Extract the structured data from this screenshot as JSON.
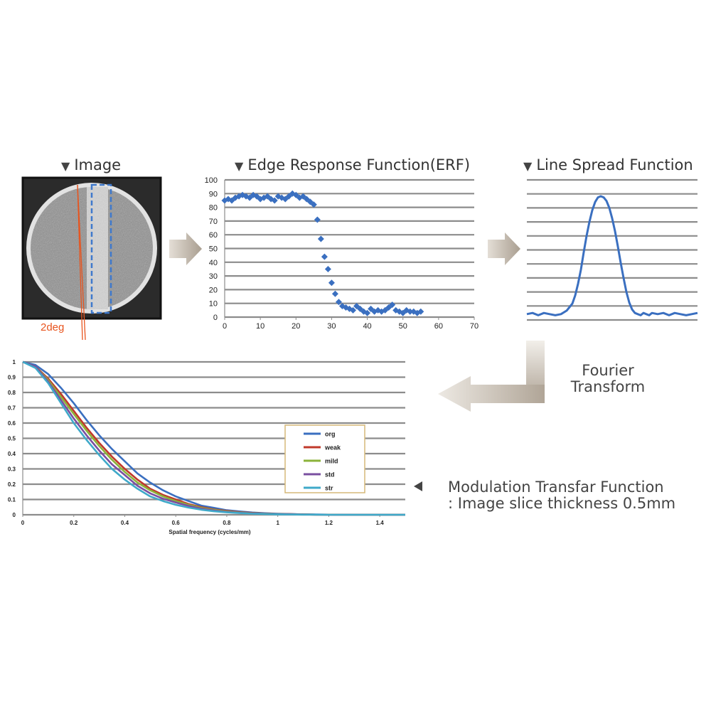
{
  "panels": {
    "image": {
      "title": "Image",
      "angle_label": "2deg"
    },
    "erf": {
      "title": "Edge Response Function(ERF)"
    },
    "lsf": {
      "title": "Line Spread Function"
    }
  },
  "fourier_caption": [
    "Fourier",
    "Transform"
  ],
  "mtf_caption": [
    "Modulation Transfar Function",
    ": Image slice thickness 0.5mm"
  ],
  "colors": {
    "series_blue": "#3a6fc0",
    "arrow": "#b7ada0",
    "grid": "#8c8c8c",
    "angle_lines": "#e8541e",
    "roi": "#3f79cc"
  },
  "chart_data": [
    {
      "id": "erf",
      "type": "scatter",
      "title": "Edge Response Function(ERF)",
      "xlim": [
        0,
        70
      ],
      "ylim": [
        0,
        100
      ],
      "xticks": [
        0,
        10,
        20,
        30,
        40,
        50,
        60,
        70
      ],
      "yticks": [
        0,
        10,
        20,
        30,
        40,
        50,
        60,
        70,
        80,
        90,
        100
      ],
      "grid": true,
      "x": [
        0,
        1,
        2,
        3,
        4,
        5,
        6,
        7,
        8,
        9,
        10,
        11,
        12,
        13,
        14,
        15,
        16,
        17,
        18,
        19,
        20,
        21,
        22,
        23,
        24,
        25,
        26,
        27,
        28,
        29,
        30,
        31,
        32,
        33,
        34,
        35,
        36,
        37,
        38,
        39,
        40,
        41,
        42,
        43,
        44,
        45,
        46,
        47,
        48,
        49,
        50,
        51,
        52,
        53,
        54,
        55
      ],
      "y": [
        85,
        86,
        85,
        87,
        88,
        89,
        88,
        87,
        89,
        88,
        86,
        87,
        88,
        86,
        85,
        88,
        87,
        86,
        88,
        90,
        89,
        87,
        88,
        86,
        84,
        82,
        71,
        57,
        44,
        35,
        25,
        17,
        11,
        8,
        7,
        6,
        5,
        8,
        6,
        4,
        3,
        6,
        4,
        5,
        4,
        5,
        7,
        9,
        5,
        4,
        3,
        5,
        4,
        4,
        3,
        4
      ]
    },
    {
      "id": "lsf",
      "type": "line",
      "title": "Line Spread Function",
      "xlim": [
        0,
        60
      ],
      "ylim": [
        0,
        12
      ],
      "grid": true,
      "x": [
        0,
        2,
        4,
        6,
        8,
        10,
        12,
        14,
        16,
        17,
        18,
        19,
        20,
        21,
        22,
        23,
        24,
        25,
        26,
        27,
        28,
        29,
        30,
        31,
        32,
        33,
        34,
        35,
        36,
        37,
        38,
        39,
        40,
        41,
        42,
        43,
        44,
        46,
        48,
        50,
        52,
        54,
        56,
        58,
        60
      ],
      "y": [
        0.5,
        0.6,
        0.4,
        0.6,
        0.5,
        0.4,
        0.5,
        0.8,
        1.4,
        2.1,
        3.1,
        4.3,
        5.8,
        7.2,
        8.4,
        9.4,
        10.1,
        10.5,
        10.6,
        10.5,
        10.2,
        9.6,
        8.7,
        7.6,
        6.3,
        4.9,
        3.6,
        2.4,
        1.5,
        0.9,
        0.6,
        0.5,
        0.4,
        0.6,
        0.5,
        0.4,
        0.6,
        0.5,
        0.6,
        0.4,
        0.6,
        0.5,
        0.4,
        0.5,
        0.6
      ]
    },
    {
      "id": "mtf",
      "type": "line",
      "xlabel": "Spatial frequency (cycles/mm)",
      "xlim": [
        0,
        1.5
      ],
      "ylim": [
        0,
        1
      ],
      "xticks": [
        0,
        0.2,
        0.4,
        0.6,
        0.8,
        1,
        1.2,
        1.4
      ],
      "xtick_labels": [
        "0",
        "0.2",
        "0.4",
        "0.6",
        "0.8",
        "1",
        "1.2",
        "1.4"
      ],
      "yticks": [
        0,
        0.1,
        0.2,
        0.3,
        0.4,
        0.5,
        0.6,
        0.7,
        0.8,
        0.9,
        1
      ],
      "ytick_labels": [
        "0",
        "0.1",
        "0.2",
        "0.3",
        "0.4",
        "0.5",
        "0.6",
        "0.7",
        "0.8",
        "0.9",
        "1"
      ],
      "grid": true,
      "legend_position": "right",
      "x": [
        0,
        0.05,
        0.1,
        0.15,
        0.2,
        0.25,
        0.3,
        0.35,
        0.4,
        0.45,
        0.5,
        0.55,
        0.6,
        0.65,
        0.7,
        0.75,
        0.8,
        0.85,
        0.9,
        0.95,
        1,
        1.05,
        1.1,
        1.15,
        1.2,
        1.25,
        1.3,
        1.35,
        1.4,
        1.45,
        1.5
      ],
      "series": [
        {
          "name": "org",
          "color": "#3a6fc0",
          "values": [
            1,
            0.98,
            0.92,
            0.83,
            0.73,
            0.62,
            0.52,
            0.43,
            0.35,
            0.27,
            0.21,
            0.16,
            0.12,
            0.09,
            0.06,
            0.045,
            0.03,
            0.022,
            0.015,
            0.01,
            0.007,
            0.005,
            0.003,
            0.002,
            0.001,
            0.001,
            0,
            0,
            0,
            0,
            0
          ]
        },
        {
          "name": "weak",
          "color": "#c0392b",
          "values": [
            1,
            0.97,
            0.89,
            0.79,
            0.68,
            0.57,
            0.47,
            0.38,
            0.3,
            0.23,
            0.17,
            0.13,
            0.1,
            0.07,
            0.05,
            0.035,
            0.025,
            0.017,
            0.012,
            0.008,
            0.005,
            0.004,
            0.002,
            0.001,
            0.001,
            0,
            0,
            0,
            0,
            0,
            0
          ]
        },
        {
          "name": "mild",
          "color": "#8bb33a",
          "values": [
            1,
            0.97,
            0.88,
            0.77,
            0.66,
            0.55,
            0.45,
            0.36,
            0.28,
            0.21,
            0.16,
            0.12,
            0.09,
            0.065,
            0.045,
            0.032,
            0.022,
            0.015,
            0.01,
            0.007,
            0.005,
            0.003,
            0.002,
            0.001,
            0.001,
            0,
            0,
            0,
            0,
            0,
            0
          ]
        },
        {
          "name": "std",
          "color": "#7a4fa0",
          "values": [
            1,
            0.97,
            0.87,
            0.75,
            0.63,
            0.52,
            0.42,
            0.33,
            0.26,
            0.19,
            0.14,
            0.105,
            0.08,
            0.058,
            0.04,
            0.028,
            0.019,
            0.013,
            0.009,
            0.006,
            0.004,
            0.003,
            0.002,
            0.001,
            0,
            0,
            0,
            0,
            0,
            0,
            0
          ]
        },
        {
          "name": "str",
          "color": "#3fa9c9",
          "values": [
            1,
            0.96,
            0.86,
            0.73,
            0.6,
            0.49,
            0.39,
            0.3,
            0.23,
            0.17,
            0.12,
            0.09,
            0.065,
            0.047,
            0.033,
            0.023,
            0.016,
            0.011,
            0.007,
            0.005,
            0.003,
            0.002,
            0.001,
            0.001,
            0,
            0,
            0,
            0,
            0,
            0,
            0
          ]
        }
      ]
    }
  ]
}
